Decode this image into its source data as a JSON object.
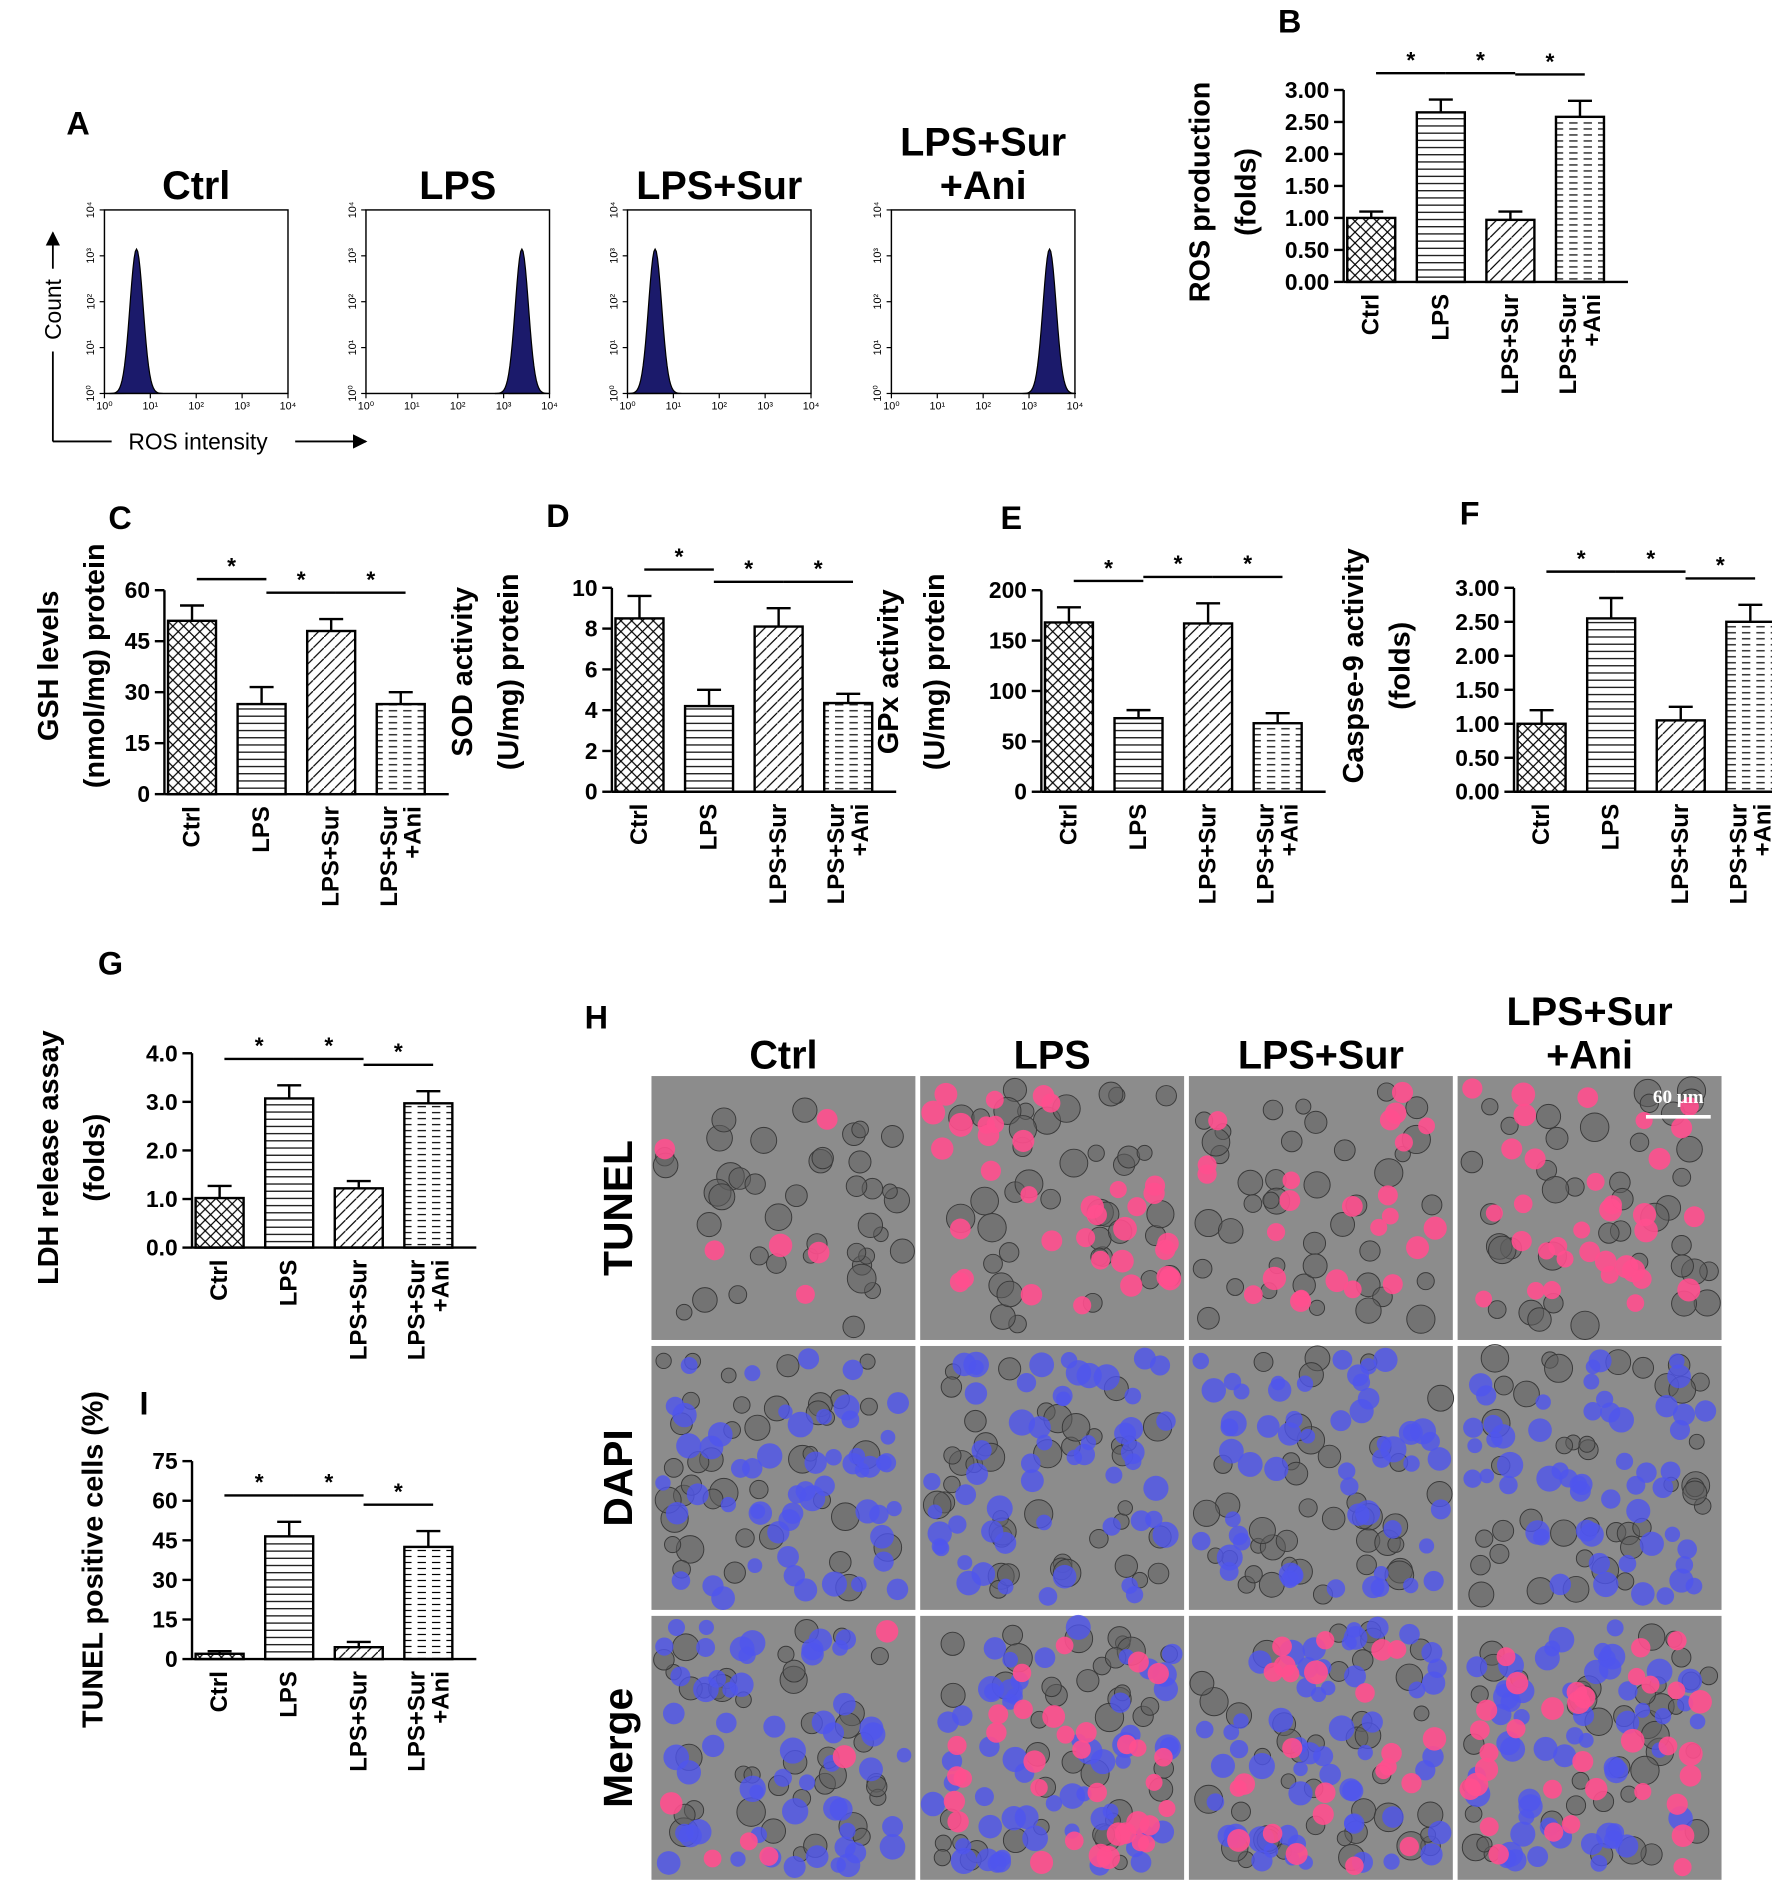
{
  "panel_a": {
    "letter": "A",
    "ylabel": "Count",
    "xlabel": "ROS intensity"
  },
  "chart_data": [
    {
      "type": "flow",
      "title": "Ctrl",
      "xlim": [
        1,
        10000
      ],
      "ylim": [
        1,
        10000
      ],
      "log_x": true,
      "log_y": true,
      "xticks": [
        {
          "value": 1,
          "label": "10⁰"
        },
        {
          "value": 10,
          "label": "10¹"
        },
        {
          "value": 100,
          "label": "10²"
        },
        {
          "value": 1000,
          "label": "10³"
        },
        {
          "value": 10000,
          "label": "10⁴"
        }
      ],
      "yticks": [
        {
          "value": 1,
          "label": "10⁰"
        },
        {
          "value": 10,
          "label": "10¹"
        },
        {
          "value": 100,
          "label": "10²"
        },
        {
          "value": 1000,
          "label": "10³"
        },
        {
          "value": 10000,
          "label": "10⁴"
        }
      ],
      "peak": {
        "x": 5,
        "count": 1400
      },
      "color": "#1b1a6b"
    },
    {
      "type": "flow",
      "title": "LPS",
      "xlim": [
        1,
        10000
      ],
      "ylim": [
        1,
        10000
      ],
      "log_x": true,
      "log_y": true,
      "xticks": [
        {
          "value": 1,
          "label": "10⁰"
        },
        {
          "value": 10,
          "label": "10¹"
        },
        {
          "value": 100,
          "label": "10²"
        },
        {
          "value": 1000,
          "label": "10³"
        },
        {
          "value": 10000,
          "label": "10⁴"
        }
      ],
      "yticks": [
        {
          "value": 1,
          "label": "10⁰"
        },
        {
          "value": 10,
          "label": "10¹"
        },
        {
          "value": 100,
          "label": "10²"
        },
        {
          "value": 1000,
          "label": "10³"
        },
        {
          "value": 10000,
          "label": "10⁴"
        }
      ],
      "peak": {
        "x": 2500,
        "count": 1400
      },
      "color": "#1b1a6b"
    },
    {
      "type": "flow",
      "title": "LPS+Sur",
      "xlim": [
        1,
        10000
      ],
      "ylim": [
        1,
        10000
      ],
      "log_x": true,
      "log_y": true,
      "xticks": [
        {
          "value": 1,
          "label": "10⁰"
        },
        {
          "value": 10,
          "label": "10¹"
        },
        {
          "value": 100,
          "label": "10²"
        },
        {
          "value": 1000,
          "label": "10³"
        },
        {
          "value": 10000,
          "label": "10⁴"
        }
      ],
      "yticks": [
        {
          "value": 1,
          "label": "10⁰"
        },
        {
          "value": 10,
          "label": "10¹"
        },
        {
          "value": 100,
          "label": "10²"
        },
        {
          "value": 1000,
          "label": "10³"
        },
        {
          "value": 10000,
          "label": "10⁴"
        }
      ],
      "peak": {
        "x": 4,
        "count": 1400
      },
      "color": "#1b1a6b"
    },
    {
      "type": "flow",
      "title": "LPS+Sur\n+Ani",
      "xlim": [
        1,
        10000
      ],
      "ylim": [
        1,
        10000
      ],
      "log_x": true,
      "log_y": true,
      "xticks": [
        {
          "value": 1,
          "label": "10⁰"
        },
        {
          "value": 10,
          "label": "10¹"
        },
        {
          "value": 100,
          "label": "10²"
        },
        {
          "value": 1000,
          "label": "10³"
        },
        {
          "value": 10000,
          "label": "10⁴"
        }
      ],
      "yticks": [
        {
          "value": 1,
          "label": "10⁰"
        },
        {
          "value": 10,
          "label": "10¹"
        },
        {
          "value": 100,
          "label": "10²"
        },
        {
          "value": 1000,
          "label": "10³"
        },
        {
          "value": 10000,
          "label": "10⁴"
        }
      ],
      "peak": {
        "x": 2800,
        "count": 1400
      },
      "color": "#1b1a6b"
    },
    {
      "type": "bar",
      "panel": "B",
      "ylabel": "ROS production\n(folds)",
      "categories": [
        "Ctrl",
        "LPS",
        "LPS+Sur",
        "LPS+Sur\n+Ani"
      ],
      "values": [
        1.0,
        2.65,
        0.97,
        2.58
      ],
      "errors": [
        0.1,
        0.2,
        0.13,
        0.25
      ],
      "ylim": [
        0,
        3
      ],
      "yticks": [
        {
          "value": 0,
          "label": "0.00"
        },
        {
          "value": 0.5,
          "label": "0.50"
        },
        {
          "value": 1,
          "label": "1.00"
        },
        {
          "value": 1.5,
          "label": "1.50"
        },
        {
          "value": 2,
          "label": "2.00"
        },
        {
          "value": 2.5,
          "label": "2.50"
        },
        {
          "value": 3,
          "label": "3.00"
        }
      ],
      "significance": [
        "*",
        "*",
        "*"
      ]
    },
    {
      "type": "bar",
      "panel": "C",
      "ylabel": "GSH levels\n(nmol/mg) protein",
      "categories": [
        "Ctrl",
        "LPS",
        "LPS+Sur",
        "LPS+Sur\n+Ani"
      ],
      "values": [
        51,
        26.5,
        48,
        26.5
      ],
      "errors": [
        4.5,
        5,
        3.5,
        3.5
      ],
      "ylim": [
        0,
        60
      ],
      "yticks": [
        0,
        15,
        30,
        45,
        60
      ],
      "significance": [
        "*",
        "*",
        "*"
      ]
    },
    {
      "type": "bar",
      "panel": "D",
      "ylabel": "SOD activity\n(U/mg) protein",
      "categories": [
        "Ctrl",
        "LPS",
        "LPS+Sur",
        "LPS+Sur\n+Ani"
      ],
      "values": [
        8.5,
        4.2,
        8.1,
        4.35
      ],
      "errors": [
        1.1,
        0.8,
        0.9,
        0.45
      ],
      "ylim": [
        0,
        10
      ],
      "yticks": [
        0,
        2,
        4,
        6,
        8,
        10
      ],
      "significance": [
        "*",
        "*",
        "*"
      ]
    },
    {
      "type": "bar",
      "panel": "E",
      "ylabel": "GPx activity\n(U/mg) protein",
      "categories": [
        "Ctrl",
        "LPS",
        "LPS+Sur",
        "LPS+Sur\n+Ani"
      ],
      "values": [
        168,
        73,
        167,
        68
      ],
      "errors": [
        15,
        8,
        20,
        10
      ],
      "ylim": [
        0,
        200
      ],
      "yticks": [
        0,
        50,
        100,
        150,
        200
      ],
      "significance": [
        "*",
        "*",
        "*"
      ]
    },
    {
      "type": "bar",
      "panel": "F",
      "ylabel": "Caspse-9 activity\n(folds)",
      "categories": [
        "Ctrl",
        "LPS",
        "LPS+Sur",
        "LPS+Sur\n+Ani"
      ],
      "values": [
        1.0,
        2.55,
        1.05,
        2.5
      ],
      "errors": [
        0.2,
        0.3,
        0.2,
        0.25
      ],
      "ylim": [
        0,
        3
      ],
      "yticks": [
        {
          "value": 0,
          "label": "0.00"
        },
        {
          "value": 0.5,
          "label": "0.50"
        },
        {
          "value": 1,
          "label": "1.00"
        },
        {
          "value": 1.5,
          "label": "1.50"
        },
        {
          "value": 2,
          "label": "2.00"
        },
        {
          "value": 2.5,
          "label": "2.50"
        },
        {
          "value": 3,
          "label": "3.00"
        }
      ],
      "significance": [
        "*",
        "*",
        "*"
      ]
    },
    {
      "type": "bar",
      "panel": "G",
      "ylabel": "LDH release assay\n(folds)",
      "categories": [
        "Ctrl",
        "LPS",
        "LPS+Sur",
        "LPS+Sur\n+Ani"
      ],
      "values": [
        1.02,
        3.07,
        1.22,
        2.97
      ],
      "errors": [
        0.25,
        0.27,
        0.15,
        0.25
      ],
      "ylim": [
        0,
        4
      ],
      "yticks": [
        {
          "value": 0,
          "label": "0.0"
        },
        {
          "value": 1,
          "label": "1.0"
        },
        {
          "value": 2,
          "label": "2.0"
        },
        {
          "value": 3,
          "label": "3.0"
        },
        {
          "value": 4,
          "label": "4.0"
        }
      ],
      "significance": [
        "*",
        "*",
        "*"
      ]
    },
    {
      "type": "bar",
      "panel": "I",
      "ylabel": "TUNEL positive cells (%)",
      "categories": [
        "Ctrl",
        "LPS",
        "LPS+Sur",
        "LPS+Sur\n+Ani"
      ],
      "values": [
        2,
        46.5,
        4.5,
        42.5
      ],
      "errors": [
        1,
        5.5,
        2,
        6
      ],
      "ylim": [
        0,
        75
      ],
      "yticks": [
        0,
        15,
        30,
        45,
        60,
        75
      ],
      "significance": [
        "*",
        "*",
        "*"
      ]
    }
  ],
  "microscopy": {
    "letter": "H",
    "columns": [
      "Ctrl",
      "LPS",
      "LPS+Sur",
      "LPS+Sur\n+Ani"
    ],
    "rows": [
      "TUNEL",
      "DAPI",
      "Merge"
    ],
    "scale_bar": "60 μm"
  }
}
